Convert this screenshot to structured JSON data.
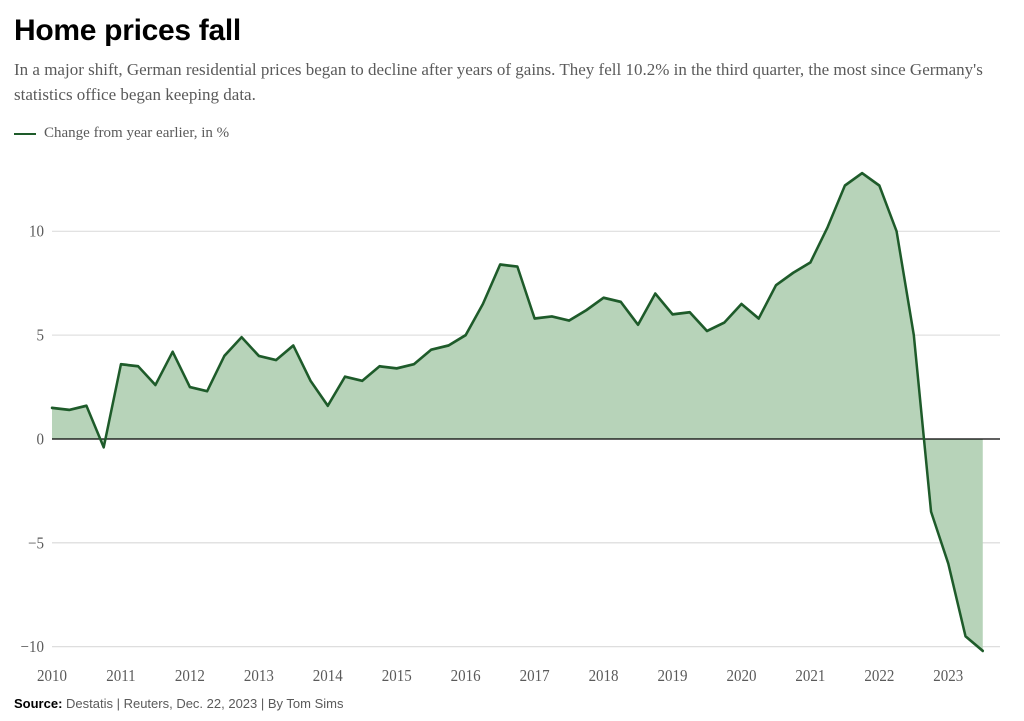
{
  "title": "Home prices fall",
  "subtitle": "In a major shift, German residential prices began to decline after years of gains. They fell 10.2% in the third quarter, the most since Germany's statistics office began keeping data.",
  "legend": {
    "label": "Change from year earlier, in %"
  },
  "source": {
    "label": "Source: ",
    "text": "Destatis | Reuters, Dec. 22, 2023 | By Tom Sims"
  },
  "chart": {
    "type": "area",
    "line_color": "#1e5b2a",
    "fill_color": "#b7d3b9",
    "fill_opacity": 1.0,
    "line_width": 2.5,
    "background_color": "#ffffff",
    "grid_color": "#d9d9d9",
    "axis_text_color": "#5a5a5a",
    "xlim": [
      2010.0,
      2023.75
    ],
    "ylim": [
      -10.5,
      13.5
    ],
    "yticks": [
      -10,
      -5,
      0,
      5,
      10
    ],
    "xticks": [
      2010,
      2011,
      2012,
      2013,
      2014,
      2015,
      2016,
      2017,
      2018,
      2019,
      2020,
      2021,
      2022,
      2023
    ],
    "zero_line_color": "#000000",
    "zero_line_width": 1.2,
    "series": [
      {
        "x": 2010.0,
        "y": 1.5
      },
      {
        "x": 2010.25,
        "y": 1.4
      },
      {
        "x": 2010.5,
        "y": 1.6
      },
      {
        "x": 2010.75,
        "y": -0.4
      },
      {
        "x": 2011.0,
        "y": 3.6
      },
      {
        "x": 2011.25,
        "y": 3.5
      },
      {
        "x": 2011.5,
        "y": 2.6
      },
      {
        "x": 2011.75,
        "y": 4.2
      },
      {
        "x": 2012.0,
        "y": 2.5
      },
      {
        "x": 2012.25,
        "y": 2.3
      },
      {
        "x": 2012.5,
        "y": 4.0
      },
      {
        "x": 2012.75,
        "y": 4.9
      },
      {
        "x": 2013.0,
        "y": 4.0
      },
      {
        "x": 2013.25,
        "y": 3.8
      },
      {
        "x": 2013.5,
        "y": 4.5
      },
      {
        "x": 2013.75,
        "y": 2.8
      },
      {
        "x": 2014.0,
        "y": 1.6
      },
      {
        "x": 2014.25,
        "y": 3.0
      },
      {
        "x": 2014.5,
        "y": 2.8
      },
      {
        "x": 2014.75,
        "y": 3.5
      },
      {
        "x": 2015.0,
        "y": 3.4
      },
      {
        "x": 2015.25,
        "y": 3.6
      },
      {
        "x": 2015.5,
        "y": 4.3
      },
      {
        "x": 2015.75,
        "y": 4.5
      },
      {
        "x": 2016.0,
        "y": 5.0
      },
      {
        "x": 2016.25,
        "y": 6.5
      },
      {
        "x": 2016.5,
        "y": 8.4
      },
      {
        "x": 2016.75,
        "y": 8.3
      },
      {
        "x": 2017.0,
        "y": 5.8
      },
      {
        "x": 2017.25,
        "y": 5.9
      },
      {
        "x": 2017.5,
        "y": 5.7
      },
      {
        "x": 2017.75,
        "y": 6.2
      },
      {
        "x": 2018.0,
        "y": 6.8
      },
      {
        "x": 2018.25,
        "y": 6.6
      },
      {
        "x": 2018.5,
        "y": 5.5
      },
      {
        "x": 2018.75,
        "y": 7.0
      },
      {
        "x": 2019.0,
        "y": 6.0
      },
      {
        "x": 2019.25,
        "y": 6.1
      },
      {
        "x": 2019.5,
        "y": 5.2
      },
      {
        "x": 2019.75,
        "y": 5.6
      },
      {
        "x": 2020.0,
        "y": 6.5
      },
      {
        "x": 2020.25,
        "y": 5.8
      },
      {
        "x": 2020.5,
        "y": 7.4
      },
      {
        "x": 2020.75,
        "y": 8.0
      },
      {
        "x": 2021.0,
        "y": 8.5
      },
      {
        "x": 2021.25,
        "y": 10.2
      },
      {
        "x": 2021.5,
        "y": 12.2
      },
      {
        "x": 2021.75,
        "y": 12.8
      },
      {
        "x": 2022.0,
        "y": 12.2
      },
      {
        "x": 2022.25,
        "y": 10.0
      },
      {
        "x": 2022.5,
        "y": 5.0
      },
      {
        "x": 2022.75,
        "y": -3.5
      },
      {
        "x": 2023.0,
        "y": -6.0
      },
      {
        "x": 2023.25,
        "y": -9.5
      },
      {
        "x": 2023.5,
        "y": -10.2
      }
    ]
  }
}
